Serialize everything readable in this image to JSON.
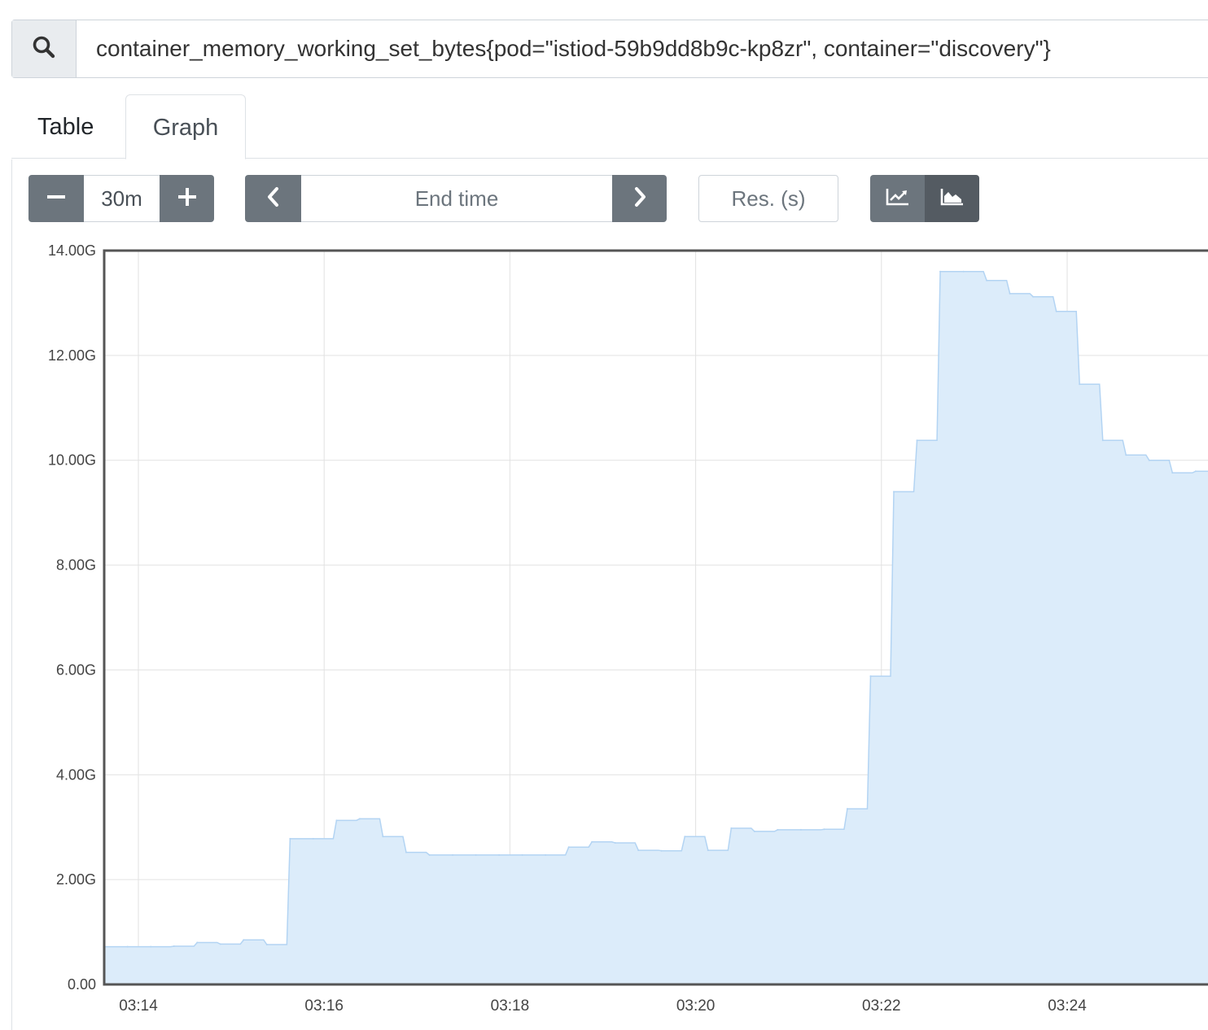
{
  "search": {
    "icon": "search-icon",
    "query": "container_memory_working_set_bytes{pod=\"istiod-59b9dd8b9c-kp8zr\", container=\"discovery\"}"
  },
  "tabs": [
    {
      "label": "Table",
      "active": false
    },
    {
      "label": "Graph",
      "active": true
    }
  ],
  "controls": {
    "range": {
      "decrease_icon": "minus-icon",
      "value": "30m",
      "increase_icon": "plus-icon"
    },
    "end_time": {
      "prev_icon": "chevron-left-icon",
      "placeholder": "End time",
      "next_icon": "chevron-right-icon"
    },
    "resolution": {
      "placeholder": "Res. (s)"
    },
    "stack": {
      "lines_icon": "line-chart-icon",
      "area_icon": "area-chart-icon",
      "selected": "stacked"
    }
  },
  "colors": {
    "series_fill": "#dcecfa",
    "series_line": "#b3d4f3",
    "button": "#6c757d"
  },
  "chart_data": {
    "type": "area",
    "title": "",
    "xlabel": "",
    "ylabel": "",
    "ylim": [
      0,
      14
    ],
    "yticks": [
      "0.00",
      "2.00G",
      "4.00G",
      "6.00G",
      "8.00G",
      "10.00G",
      "12.00G",
      "14.00G"
    ],
    "xticks": [
      "03:14",
      "03:16",
      "03:18",
      "03:20",
      "03:22",
      "03:24"
    ],
    "grid": true,
    "series": [
      {
        "x": [
          "03:13:38",
          "03:13:53",
          "03:14:08",
          "03:14:23",
          "03:14:38",
          "03:14:53",
          "03:15:08",
          "03:15:23",
          "03:15:38",
          "03:15:53",
          "03:16:08",
          "03:16:23",
          "03:16:38",
          "03:16:53",
          "03:17:08",
          "03:17:23",
          "03:17:38",
          "03:17:53",
          "03:18:08",
          "03:18:23",
          "03:18:38",
          "03:18:53",
          "03:19:08",
          "03:19:23",
          "03:19:38",
          "03:19:53",
          "03:20:08",
          "03:20:23",
          "03:20:38",
          "03:20:53",
          "03:21:08",
          "03:21:23",
          "03:21:38",
          "03:21:53",
          "03:22:08",
          "03:22:23",
          "03:22:38",
          "03:22:53",
          "03:23:08",
          "03:23:23",
          "03:23:38",
          "03:23:53",
          "03:24:08",
          "03:24:23",
          "03:24:38",
          "03:24:53",
          "03:25:08",
          "03:25:23",
          "03:25:38"
        ],
        "values": [
          0.72,
          0.72,
          0.72,
          0.73,
          0.8,
          0.77,
          0.85,
          0.76,
          2.78,
          2.78,
          3.13,
          3.16,
          2.82,
          2.52,
          2.47,
          2.47,
          2.47,
          2.47,
          2.47,
          2.47,
          2.62,
          2.72,
          2.7,
          2.56,
          2.55,
          2.82,
          2.56,
          2.98,
          2.92,
          2.95,
          2.95,
          2.96,
          3.35,
          5.88,
          9.4,
          10.38,
          13.6,
          13.6,
          13.43,
          13.18,
          13.12,
          12.84,
          11.45,
          10.38,
          10.1,
          10.0,
          9.76,
          9.79,
          9.8
        ]
      }
    ]
  }
}
